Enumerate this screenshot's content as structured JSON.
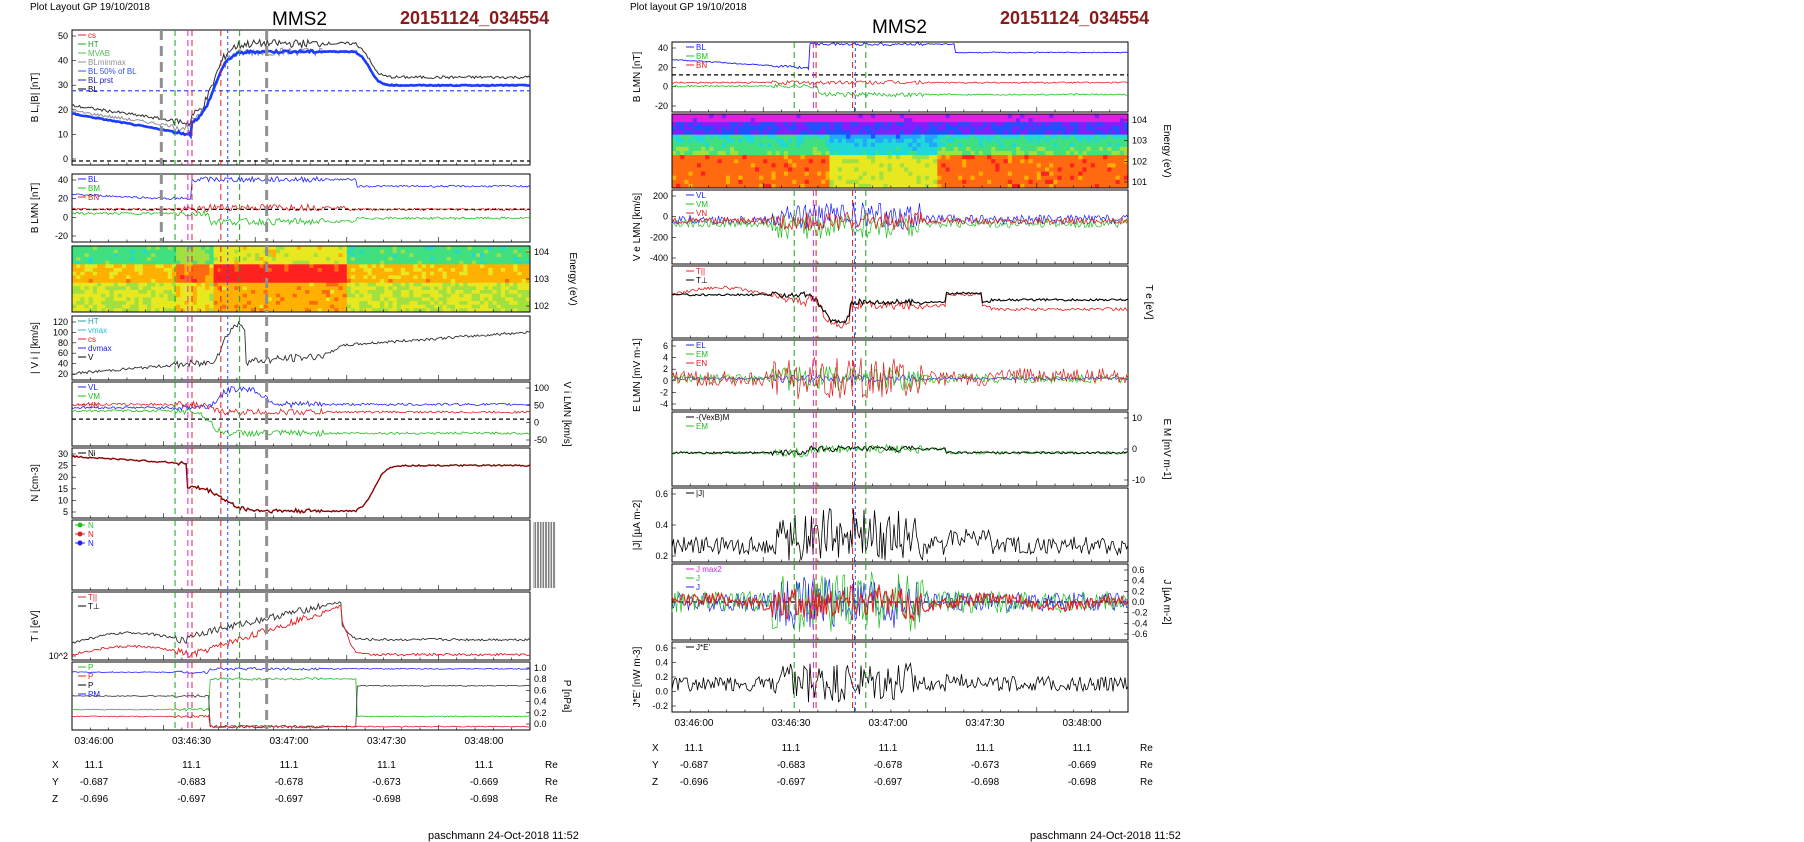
{
  "left": {
    "header": "Plot Layout GP 19/10/2018",
    "title": "MMS2",
    "event_id": "20151124_034554",
    "footer": "paschmann 24-Oct-2018 11:52",
    "time_ticks": [
      "03:46:00",
      "03:46:30",
      "03:47:00",
      "03:47:30",
      "03:48:00"
    ],
    "ephemeris": {
      "rows": [
        {
          "label": "X",
          "values": [
            "11.1",
            "11.1",
            "11.1",
            "11.1",
            "11.1"
          ],
          "unit": "Re"
        },
        {
          "label": "Y",
          "values": [
            "-0.687",
            "-0.683",
            "-0.678",
            "-0.673",
            "-0.669"
          ],
          "unit": "Re"
        },
        {
          "label": "Z",
          "values": [
            "-0.696",
            "-0.697",
            "-0.697",
            "-0.698",
            "-0.698"
          ],
          "unit": "Re"
        }
      ]
    },
    "panels": [
      {
        "id": "bl",
        "ylabel": "B_L,|B| [nT]",
        "ticks": [
          "50",
          "40",
          "30",
          "20",
          "10",
          "0"
        ],
        "legend": [
          {
            "text": "cs",
            "color": "#e02020"
          },
          {
            "text": "HT",
            "color": "#20a020"
          },
          {
            "text": "MVAB",
            "color": "#50c050"
          },
          {
            "text": "BLminmax",
            "color": "#909090"
          },
          {
            "text": "BL 50% of BL",
            "color": "#3050ff"
          },
          {
            "text": "BL prst",
            "color": "#2020c0"
          },
          {
            "text": "BL",
            "color": "#000000"
          }
        ]
      },
      {
        "id": "blmn",
        "ylabel": "B_LMN [nT]",
        "ticks": [
          "40",
          "20",
          "0",
          "-20"
        ],
        "legend": [
          {
            "text": "BL",
            "color": "#2020ff"
          },
          {
            "text": "BM",
            "color": "#20c020"
          },
          {
            "text": "BN",
            "color": "#e02020"
          }
        ]
      },
      {
        "id": "ispec",
        "ylabel_right": "Energy (eV)",
        "ticks_right": [
          "10^4",
          "10^3",
          "10^2"
        ]
      },
      {
        "id": "vi",
        "ylabel": "| V_i | [km/s]",
        "ticks": [
          "120",
          "100",
          "80",
          "60",
          "40",
          "20"
        ],
        "legend": [
          {
            "text": "HT",
            "color": "#20a0a0"
          },
          {
            "text": "vmax",
            "color": "#20c0e0"
          },
          {
            "text": "cs",
            "color": "#e02020"
          },
          {
            "text": "dvmax",
            "color": "#2020ff"
          },
          {
            "text": "V",
            "color": "#000000"
          }
        ]
      },
      {
        "id": "vilmn",
        "ylabel_right": "V_i LMN [km/s]",
        "ticks_right": [
          "100",
          "50",
          "0",
          "-50"
        ],
        "legend": [
          {
            "text": "VL",
            "color": "#2020ff"
          },
          {
            "text": "VM",
            "color": "#20c020"
          },
          {
            "text": "VN",
            "color": "#e02020"
          }
        ]
      },
      {
        "id": "n",
        "ylabel": "N [cm^-3]",
        "ticks": [
          "30",
          "25",
          "20",
          "15",
          "10",
          "5"
        ],
        "legend": [
          {
            "text": "Ni",
            "color": "#000000"
          }
        ]
      },
      {
        "id": "nmark",
        "legend": [
          {
            "text": "N",
            "color": "#20c020"
          },
          {
            "text": "N",
            "color": "#e02020"
          },
          {
            "text": "N",
            "color": "#2020ff"
          }
        ]
      },
      {
        "id": "ti",
        "ylabel": "T_i [eV]",
        "ticks": [
          "10^2"
        ],
        "legend": [
          {
            "text": "T||",
            "color": "#e02020"
          },
          {
            "text": "T⊥",
            "color": "#000000"
          }
        ]
      },
      {
        "id": "p",
        "ylabel_right": "P [nPa]",
        "ticks_right": [
          "1.0",
          "0.8",
          "0.6",
          "0.4",
          "0.2",
          "0.0"
        ],
        "legend": [
          {
            "text": "P",
            "color": "#20c020"
          },
          {
            "text": "P",
            "color": "#e02020"
          },
          {
            "text": "P",
            "color": "#000000"
          },
          {
            "text": "PM",
            "color": "#2020ff"
          }
        ]
      }
    ]
  },
  "right": {
    "header": "Plot layout GP 19/10/2018",
    "title": "MMS2",
    "event_id": "20151124_034554",
    "footer": "paschmann 24-Oct-2018 11:52",
    "time_ticks": [
      "03:46:00",
      "03:46:30",
      "03:47:00",
      "03:47:30",
      "03:48:00"
    ],
    "ephemeris": {
      "rows": [
        {
          "label": "X",
          "values": [
            "11.1",
            "11.1",
            "11.1",
            "11.1",
            "11.1"
          ],
          "unit": "Re"
        },
        {
          "label": "Y",
          "values": [
            "-0.687",
            "-0.683",
            "-0.678",
            "-0.673",
            "-0.669"
          ],
          "unit": "Re"
        },
        {
          "label": "Z",
          "values": [
            "-0.696",
            "-0.697",
            "-0.697",
            "-0.698",
            "-0.698"
          ],
          "unit": "Re"
        }
      ]
    },
    "panels": [
      {
        "id": "blmn",
        "ylabel": "B_LMN [nT]",
        "ticks": [
          "40",
          "20",
          "0",
          "-20"
        ],
        "legend": [
          {
            "text": "BL",
            "color": "#2020ff"
          },
          {
            "text": "BM",
            "color": "#20c020"
          },
          {
            "text": "BN",
            "color": "#e02020"
          }
        ]
      },
      {
        "id": "espec",
        "ylabel_right": "Energy (eV)",
        "ticks_right": [
          "10^4",
          "10^3",
          "10^2",
          "10^1"
        ]
      },
      {
        "id": "ve",
        "ylabel": "V_e LMN [km/s]",
        "ticks": [
          "200",
          "0",
          "-200",
          "-400"
        ],
        "legend": [
          {
            "text": "VL",
            "color": "#2020ff"
          },
          {
            "text": "VM",
            "color": "#20c020"
          },
          {
            "text": "VN",
            "color": "#e02020"
          }
        ]
      },
      {
        "id": "te",
        "ylabel_right": "T_e [eV]",
        "legend": [
          {
            "text": "T||",
            "color": "#e02020"
          },
          {
            "text": "T⊥",
            "color": "#000000"
          }
        ]
      },
      {
        "id": "elmn",
        "ylabel": "E_LMN [mV m^-1]",
        "ticks": [
          "6",
          "4",
          "2",
          "0",
          "-2",
          "-4"
        ],
        "legend": [
          {
            "text": "EL",
            "color": "#2020ff"
          },
          {
            "text": "EM",
            "color": "#20c020"
          },
          {
            "text": "EN",
            "color": "#e02020"
          }
        ]
      },
      {
        "id": "em",
        "ylabel_right": "E_M [mV m^-1]",
        "ticks_right": [
          "10",
          "0",
          "-10"
        ],
        "legend": [
          {
            "text": "-(VexB)M",
            "color": "#000000"
          },
          {
            "text": "EM",
            "color": "#20c020"
          }
        ]
      },
      {
        "id": "jabs",
        "ylabel": "|J| [µA m^-2]",
        "ticks": [
          "0.6",
          "0.4",
          "0.2"
        ],
        "legend": [
          {
            "text": "|J|",
            "color": "#000000"
          }
        ]
      },
      {
        "id": "jlmn",
        "ylabel_right": "J [µA m^-2]",
        "ticks_right": [
          "0.6",
          "0.4",
          "0.2",
          "0.0",
          "-0.2",
          "-0.4",
          "-0.6"
        ],
        "legend": [
          {
            "text": "J max2",
            "color": "#e020e0"
          },
          {
            "text": "J",
            "color": "#20c020"
          },
          {
            "text": "J",
            "color": "#2020ff"
          }
        ]
      },
      {
        "id": "je",
        "ylabel": "J*E' [nW m^-3]",
        "ticks": [
          "0.6",
          "0.4",
          "0.2",
          "0.0",
          "-0.2"
        ],
        "legend": [
          {
            "text": "J*E'",
            "color": "#000000"
          }
        ]
      }
    ]
  }
}
